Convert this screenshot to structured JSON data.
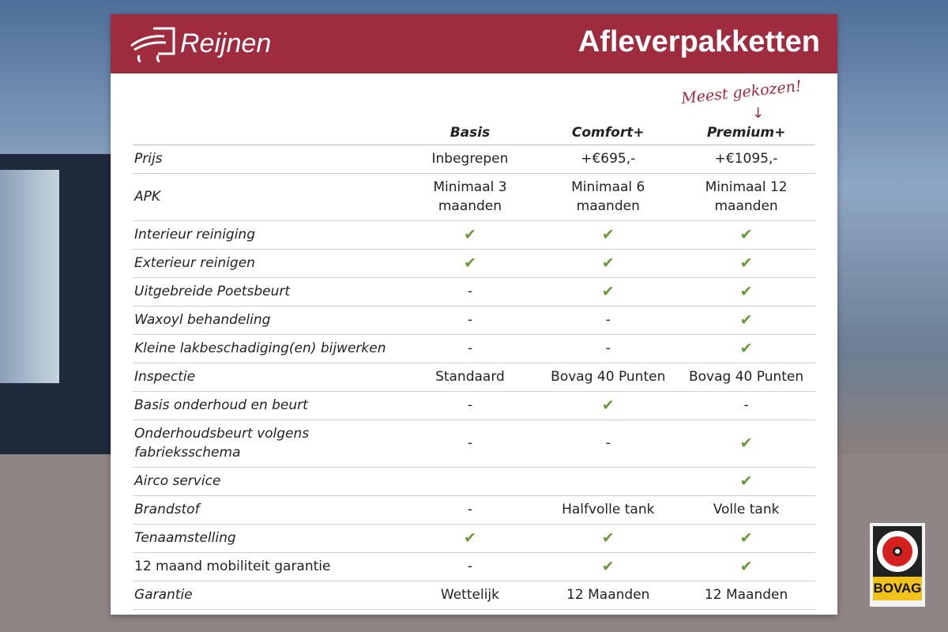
{
  "header": {
    "logo_text": "Reijnen",
    "title": "Afleverpakketten",
    "badge_note": "Meest gekozen!"
  },
  "columns": [
    "Basis",
    "Comfort+",
    "Premium+"
  ],
  "rows": [
    {
      "label": "Prijs",
      "values": [
        "Inbegrepen",
        "+€695,-",
        "+€1095,-"
      ]
    },
    {
      "label": "APK",
      "values": [
        "Minimaal 3 maanden",
        "Minimaal 6 maanden",
        "Minimaal 12 maanden"
      ]
    },
    {
      "label": "Interieur reiniging",
      "values": [
        "✔",
        "✔",
        "✔"
      ]
    },
    {
      "label": "Exterieur reinigen",
      "values": [
        "✔",
        "✔",
        "✔"
      ]
    },
    {
      "label": "Uitgebreide Poetsbeurt",
      "values": [
        "-",
        "✔",
        "✔"
      ]
    },
    {
      "label": "Waxoyl behandeling",
      "values": [
        "-",
        "-",
        "✔"
      ]
    },
    {
      "label": "Kleine lakbeschadiging(en) bijwerken",
      "values": [
        "-",
        "-",
        "✔"
      ]
    },
    {
      "label": "Inspectie",
      "values": [
        "Standaard",
        "Bovag 40 Punten",
        "Bovag 40 Punten"
      ]
    },
    {
      "label": "Basis onderhoud en beurt",
      "values": [
        "-",
        "✔",
        "-"
      ]
    },
    {
      "label": "Onderhoudsbeurt volgens fabrieksschema",
      "values": [
        "-",
        "-",
        "✔"
      ]
    },
    {
      "label": "Airco service",
      "values": [
        "",
        "",
        "✔"
      ]
    },
    {
      "label": "Brandstof",
      "values": [
        "-",
        "Halfvolle tank",
        "Volle tank"
      ]
    },
    {
      "label": "Tenaamstelling",
      "values": [
        "✔",
        "✔",
        "✔"
      ]
    },
    {
      "label": "12 maand mobiliteit garantie",
      "values": [
        "-",
        "✔",
        "✔"
      ]
    },
    {
      "label": "Garantie",
      "values": [
        "Wettelijk",
        "12 Maanden",
        "12 Maanden"
      ]
    }
  ],
  "bovag_logo": "BOVAG",
  "colors": {
    "brand": "#9e2b3e",
    "check": "#6a9a3a"
  }
}
